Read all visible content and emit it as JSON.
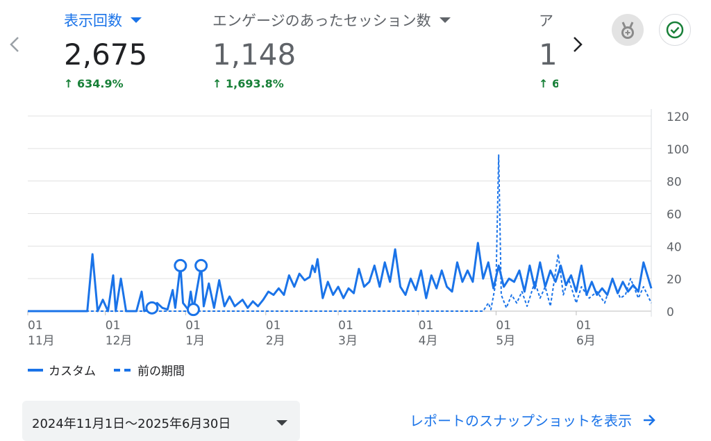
{
  "metrics": [
    {
      "label": "表示回数",
      "value": "2,675",
      "change": "634.9%",
      "active": true
    },
    {
      "label": "エンゲージのあったセッション数",
      "value": "1,148",
      "change": "1,693.8%",
      "active": false
    },
    {
      "label": "ア",
      "value": "1",
      "change": "6",
      "active": false
    }
  ],
  "date_range": "2024年11月1日～2025年6月30日",
  "report_link": "レポートのスナップショットを表示",
  "legend": {
    "current": "カスタム",
    "previous": "前の期間"
  },
  "colors": {
    "accent": "#1a73e8",
    "positive": "#188038",
    "grid": "#e0e0e0"
  },
  "icons": {
    "prev": "chevron-left-icon",
    "next": "chevron-right-icon",
    "medal": "medal-icon",
    "check": "check-circle-icon"
  },
  "chart_data": {
    "type": "line",
    "x_range": [
      "2024-11-01",
      "2025-06-30"
    ],
    "ylim": [
      0,
      120
    ],
    "y_ticks": [
      0,
      20,
      40,
      60,
      80,
      100,
      120
    ],
    "grid": true,
    "legend_position": "bottom-left",
    "x_ticks": [
      {
        "date": "2024-11-01",
        "day": "01",
        "month": "11月"
      },
      {
        "date": "2024-12-01",
        "day": "01",
        "month": "12月"
      },
      {
        "date": "2025-01-01",
        "day": "01",
        "month": "1月"
      },
      {
        "date": "2025-02-01",
        "day": "01",
        "month": "2月"
      },
      {
        "date": "2025-03-01",
        "day": "01",
        "month": "3月"
      },
      {
        "date": "2025-04-01",
        "day": "01",
        "month": "4月"
      },
      {
        "date": "2025-05-01",
        "day": "01",
        "month": "5月"
      },
      {
        "date": "2025-06-01",
        "day": "01",
        "month": "6月"
      }
    ],
    "series": [
      {
        "name": "カスタム",
        "style": "solid",
        "points": [
          {
            "x": "2024-11-01",
            "y": 0
          },
          {
            "x": "2024-11-24",
            "y": 0
          },
          {
            "x": "2024-11-26",
            "y": 35
          },
          {
            "x": "2024-11-28",
            "y": 0
          },
          {
            "x": "2024-11-30",
            "y": 7
          },
          {
            "x": "2024-12-02",
            "y": 0
          },
          {
            "x": "2024-12-04",
            "y": 22
          },
          {
            "x": "2024-12-05",
            "y": 0
          },
          {
            "x": "2024-12-07",
            "y": 20
          },
          {
            "x": "2024-12-09",
            "y": 0
          },
          {
            "x": "2024-12-13",
            "y": 0
          },
          {
            "x": "2024-12-15",
            "y": 12
          },
          {
            "x": "2024-12-16",
            "y": 0
          },
          {
            "x": "2024-12-19",
            "y": 2,
            "marker": true
          },
          {
            "x": "2024-12-21",
            "y": 5
          },
          {
            "x": "2024-12-23",
            "y": 2
          },
          {
            "x": "2024-12-25",
            "y": 1
          },
          {
            "x": "2024-12-27",
            "y": 13
          },
          {
            "x": "2024-12-28",
            "y": 2
          },
          {
            "x": "2024-12-30",
            "y": 28,
            "marker": true
          },
          {
            "x": "2024-12-31",
            "y": 5
          },
          {
            "x": "2025-01-02",
            "y": 1
          },
          {
            "x": "2025-01-03",
            "y": 12
          },
          {
            "x": "2025-01-04",
            "y": 1,
            "marker": true
          },
          {
            "x": "2025-01-07",
            "y": 28,
            "marker": true
          },
          {
            "x": "2025-01-08",
            "y": 3
          },
          {
            "x": "2025-01-10",
            "y": 17
          },
          {
            "x": "2025-01-12",
            "y": 2
          },
          {
            "x": "2025-01-14",
            "y": 19
          },
          {
            "x": "2025-01-16",
            "y": 3
          },
          {
            "x": "2025-01-18",
            "y": 9
          },
          {
            "x": "2025-01-20",
            "y": 3
          },
          {
            "x": "2025-01-23",
            "y": 7
          },
          {
            "x": "2025-01-25",
            "y": 2
          },
          {
            "x": "2025-01-27",
            "y": 6
          },
          {
            "x": "2025-01-29",
            "y": 3
          },
          {
            "x": "2025-01-31",
            "y": 7
          },
          {
            "x": "2025-02-02",
            "y": 12
          },
          {
            "x": "2025-02-04",
            "y": 10
          },
          {
            "x": "2025-02-06",
            "y": 14
          },
          {
            "x": "2025-02-08",
            "y": 10
          },
          {
            "x": "2025-02-10",
            "y": 22
          },
          {
            "x": "2025-02-12",
            "y": 15
          },
          {
            "x": "2025-02-14",
            "y": 23
          },
          {
            "x": "2025-02-16",
            "y": 19
          },
          {
            "x": "2025-02-18",
            "y": 21
          },
          {
            "x": "2025-02-19",
            "y": 28
          },
          {
            "x": "2025-02-20",
            "y": 24
          },
          {
            "x": "2025-02-21",
            "y": 32
          },
          {
            "x": "2025-02-23",
            "y": 8
          },
          {
            "x": "2025-02-25",
            "y": 18
          },
          {
            "x": "2025-02-27",
            "y": 10
          },
          {
            "x": "2025-03-01",
            "y": 15
          },
          {
            "x": "2025-03-03",
            "y": 8
          },
          {
            "x": "2025-03-05",
            "y": 14
          },
          {
            "x": "2025-03-07",
            "y": 11
          },
          {
            "x": "2025-03-09",
            "y": 26
          },
          {
            "x": "2025-03-11",
            "y": 15
          },
          {
            "x": "2025-03-13",
            "y": 18
          },
          {
            "x": "2025-03-15",
            "y": 28
          },
          {
            "x": "2025-03-17",
            "y": 15
          },
          {
            "x": "2025-03-19",
            "y": 30
          },
          {
            "x": "2025-03-21",
            "y": 18
          },
          {
            "x": "2025-03-23",
            "y": 38
          },
          {
            "x": "2025-03-25",
            "y": 15
          },
          {
            "x": "2025-03-27",
            "y": 10
          },
          {
            "x": "2025-03-29",
            "y": 20
          },
          {
            "x": "2025-03-31",
            "y": 13
          },
          {
            "x": "2025-04-02",
            "y": 25
          },
          {
            "x": "2025-04-04",
            "y": 8
          },
          {
            "x": "2025-04-06",
            "y": 22
          },
          {
            "x": "2025-04-08",
            "y": 14
          },
          {
            "x": "2025-04-10",
            "y": 25
          },
          {
            "x": "2025-04-12",
            "y": 15
          },
          {
            "x": "2025-04-14",
            "y": 12
          },
          {
            "x": "2025-04-16",
            "y": 30
          },
          {
            "x": "2025-04-18",
            "y": 18
          },
          {
            "x": "2025-04-20",
            "y": 25
          },
          {
            "x": "2025-04-22",
            "y": 18
          },
          {
            "x": "2025-04-24",
            "y": 42
          },
          {
            "x": "2025-04-26",
            "y": 20
          },
          {
            "x": "2025-04-28",
            "y": 30
          },
          {
            "x": "2025-04-30",
            "y": 14
          },
          {
            "x": "2025-05-02",
            "y": 28
          },
          {
            "x": "2025-05-04",
            "y": 15
          },
          {
            "x": "2025-05-06",
            "y": 20
          },
          {
            "x": "2025-05-08",
            "y": 18
          },
          {
            "x": "2025-05-10",
            "y": 25
          },
          {
            "x": "2025-05-12",
            "y": 12
          },
          {
            "x": "2025-05-14",
            "y": 28
          },
          {
            "x": "2025-05-16",
            "y": 14
          },
          {
            "x": "2025-05-18",
            "y": 30
          },
          {
            "x": "2025-05-20",
            "y": 15
          },
          {
            "x": "2025-05-22",
            "y": 25
          },
          {
            "x": "2025-05-24",
            "y": 18
          },
          {
            "x": "2025-05-26",
            "y": 28
          },
          {
            "x": "2025-05-28",
            "y": 16
          },
          {
            "x": "2025-05-30",
            "y": 22
          },
          {
            "x": "2025-06-01",
            "y": 12
          },
          {
            "x": "2025-06-03",
            "y": 28
          },
          {
            "x": "2025-06-05",
            "y": 10
          },
          {
            "x": "2025-06-07",
            "y": 18
          },
          {
            "x": "2025-06-09",
            "y": 10
          },
          {
            "x": "2025-06-11",
            "y": 14
          },
          {
            "x": "2025-06-13",
            "y": 10
          },
          {
            "x": "2025-06-15",
            "y": 20
          },
          {
            "x": "2025-06-17",
            "y": 11
          },
          {
            "x": "2025-06-19",
            "y": 18
          },
          {
            "x": "2025-06-21",
            "y": 12
          },
          {
            "x": "2025-06-23",
            "y": 16
          },
          {
            "x": "2025-06-25",
            "y": 12
          },
          {
            "x": "2025-06-27",
            "y": 30
          },
          {
            "x": "2025-06-30",
            "y": 14
          }
        ]
      },
      {
        "name": "前の期間",
        "style": "dashed",
        "points": [
          {
            "x": "2024-11-01",
            "y": 0
          },
          {
            "x": "2025-04-26",
            "y": 0
          },
          {
            "x": "2025-04-28",
            "y": 5
          },
          {
            "x": "2025-04-29",
            "y": 1
          },
          {
            "x": "2025-05-01",
            "y": 18
          },
          {
            "x": "2025-05-02",
            "y": 96
          },
          {
            "x": "2025-05-03",
            "y": 10
          },
          {
            "x": "2025-05-05",
            "y": 2
          },
          {
            "x": "2025-05-07",
            "y": 10
          },
          {
            "x": "2025-05-09",
            "y": 5
          },
          {
            "x": "2025-05-11",
            "y": 12
          },
          {
            "x": "2025-05-13",
            "y": 3
          },
          {
            "x": "2025-05-16",
            "y": 18
          },
          {
            "x": "2025-05-18",
            "y": 8
          },
          {
            "x": "2025-05-20",
            "y": 15
          },
          {
            "x": "2025-05-22",
            "y": 3
          },
          {
            "x": "2025-05-25",
            "y": 35
          },
          {
            "x": "2025-05-27",
            "y": 10
          },
          {
            "x": "2025-05-29",
            "y": 20
          },
          {
            "x": "2025-06-01",
            "y": 5
          },
          {
            "x": "2025-06-03",
            "y": 15
          },
          {
            "x": "2025-06-06",
            "y": 8
          },
          {
            "x": "2025-06-09",
            "y": 12
          },
          {
            "x": "2025-06-12",
            "y": 5
          },
          {
            "x": "2025-06-15",
            "y": 20
          },
          {
            "x": "2025-06-18",
            "y": 8
          },
          {
            "x": "2025-06-20",
            "y": 10
          },
          {
            "x": "2025-06-22",
            "y": 20
          },
          {
            "x": "2025-06-25",
            "y": 8
          },
          {
            "x": "2025-06-27",
            "y": 15
          },
          {
            "x": "2025-06-30",
            "y": 5
          }
        ]
      }
    ]
  }
}
